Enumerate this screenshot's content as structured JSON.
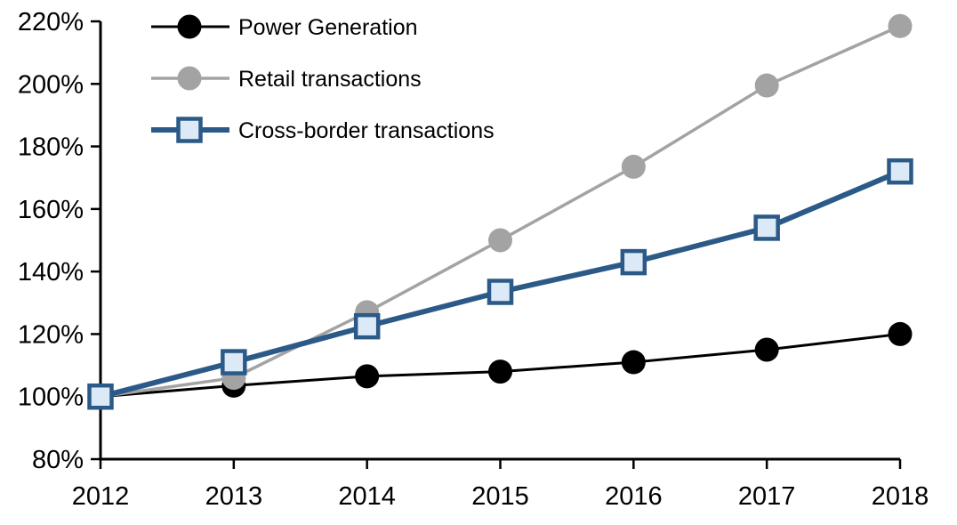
{
  "chart_data": {
    "type": "line",
    "title": "",
    "xlabel": "",
    "ylabel": "",
    "x": [
      "2012",
      "2013",
      "2014",
      "2015",
      "2016",
      "2017",
      "2018"
    ],
    "y_axis": {
      "min": 80,
      "max": 220,
      "tick_step": 20,
      "tick_labels": [
        "80%",
        "100%",
        "120%",
        "140%",
        "160%",
        "180%",
        "200%",
        "220%"
      ],
      "format": "percent"
    },
    "grid": false,
    "legend_position": "top-left-inside",
    "series": [
      {
        "name": "Power Generation",
        "values": [
          100,
          103.5,
          106.5,
          108,
          111,
          115,
          120
        ],
        "color": "#000000",
        "marker": "circle",
        "marker_fill": "#000000",
        "line_width": 3
      },
      {
        "name": "Retail transactions",
        "values": [
          100,
          106,
          127,
          150,
          173.5,
          199.5,
          218.5
        ],
        "color": "#a3a3a3",
        "marker": "circle",
        "marker_fill": "#a3a3a3",
        "line_width": 3.5
      },
      {
        "name": "Cross-border transactions",
        "values": [
          100,
          111,
          122.5,
          133.5,
          143,
          154,
          172
        ],
        "color": "#2b5a88",
        "marker": "square",
        "marker_fill": "#dce9f6",
        "line_width": 6
      }
    ]
  }
}
